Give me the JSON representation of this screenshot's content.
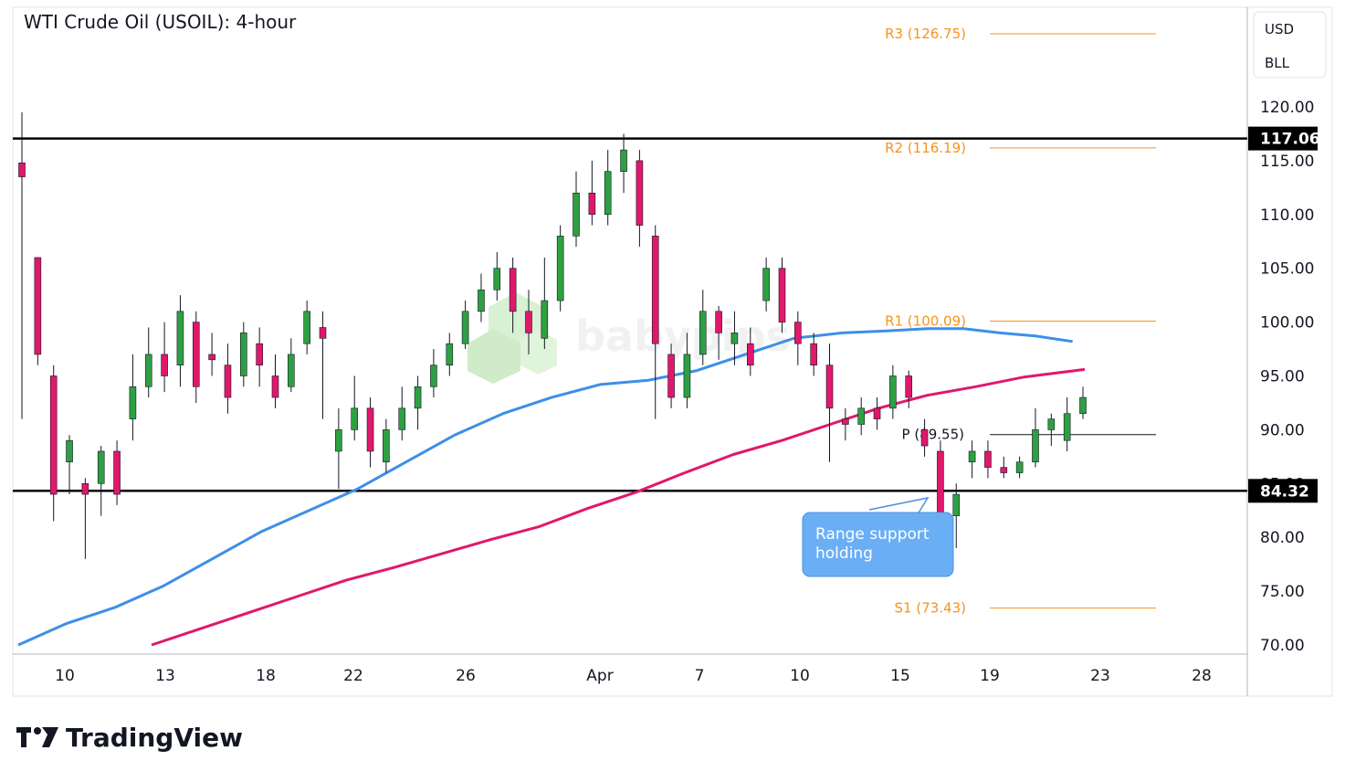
{
  "chart_data": {
    "type": "candlestick",
    "title": "WTI Crude Oil (USOIL): 4-hour",
    "currency_labels": [
      "USD",
      "BLL"
    ],
    "y_ticks": [
      "120.00",
      "115.00",
      "110.00",
      "105.00",
      "100.00",
      "95.00",
      "90.00",
      "85.00",
      "80.00",
      "75.00",
      "70.00"
    ],
    "ylim": [
      70,
      125
    ],
    "x_ticks": [
      "10",
      "13",
      "18",
      "22",
      "26",
      "Apr",
      "7",
      "10",
      "15",
      "19",
      "23",
      "28"
    ],
    "grid": false,
    "horizontal_levels": [
      {
        "label": "117.06",
        "value": 117.06,
        "color": "#000000"
      },
      {
        "label": "84.32",
        "value": 84.32,
        "color": "#000000"
      }
    ],
    "pivot_levels": [
      {
        "label": "R3 (126.75)",
        "value": 126.75
      },
      {
        "label": "R2 (116.19)",
        "value": 116.19
      },
      {
        "label": "R1 (100.09)",
        "value": 100.09
      },
      {
        "label": "P (89.55)",
        "value": 89.55
      },
      {
        "label": "S1 (73.43)",
        "value": 73.43
      }
    ],
    "moving_averages": [
      {
        "color": "#3d8fe8",
        "points": [
          [
            0,
            70.0
          ],
          [
            8,
            72.0
          ],
          [
            16,
            73.5
          ],
          [
            24,
            75.5
          ],
          [
            32,
            78.0
          ],
          [
            40,
            80.5
          ],
          [
            48,
            82.5
          ],
          [
            56,
            84.5
          ],
          [
            64,
            87.0
          ],
          [
            72,
            89.5
          ],
          [
            80,
            91.5
          ],
          [
            88,
            93.0
          ],
          [
            96,
            94.2
          ],
          [
            104,
            94.6
          ],
          [
            112,
            95.5
          ],
          [
            120,
            97.0
          ],
          [
            128,
            98.5
          ],
          [
            136,
            99.0
          ],
          [
            144,
            99.2
          ],
          [
            150,
            99.4
          ],
          [
            156,
            99.4
          ],
          [
            162,
            99.0
          ],
          [
            168,
            98.7
          ],
          [
            174,
            98.2
          ]
        ]
      },
      {
        "color": "#e0186c",
        "points": [
          [
            22,
            70.0
          ],
          [
            30,
            71.5
          ],
          [
            38,
            73.0
          ],
          [
            46,
            74.5
          ],
          [
            54,
            76.0
          ],
          [
            62,
            77.2
          ],
          [
            70,
            78.5
          ],
          [
            78,
            79.8
          ],
          [
            86,
            81.0
          ],
          [
            94,
            82.7
          ],
          [
            102,
            84.2
          ],
          [
            110,
            86.0
          ],
          [
            118,
            87.7
          ],
          [
            126,
            89.0
          ],
          [
            134,
            90.5
          ],
          [
            142,
            92.0
          ],
          [
            150,
            93.2
          ],
          [
            158,
            94.0
          ],
          [
            166,
            94.9
          ],
          [
            176,
            95.6
          ]
        ]
      }
    ],
    "candles": [
      [
        114.8,
        113.5,
        119.5,
        91.0
      ],
      [
        106.0,
        97.0,
        106.0,
        96.0
      ],
      [
        95.0,
        84.0,
        96.0,
        81.5
      ],
      [
        87.0,
        89.0,
        89.5,
        84.0
      ],
      [
        85.0,
        84.0,
        85.5,
        78.0
      ],
      [
        85.0,
        88.0,
        88.5,
        82.0
      ],
      [
        88.0,
        84.0,
        89.0,
        83.0
      ],
      [
        91.0,
        94.0,
        97.0,
        89.0
      ],
      [
        94.0,
        97.0,
        99.5,
        93.0
      ],
      [
        97.0,
        95.0,
        100.0,
        93.5
      ],
      [
        96.0,
        101.0,
        102.5,
        94.0
      ],
      [
        100.0,
        94.0,
        101.0,
        92.5
      ],
      [
        97.0,
        96.5,
        99.0,
        95.0
      ],
      [
        96.0,
        93.0,
        98.0,
        91.5
      ],
      [
        95.0,
        99.0,
        100.0,
        94.0
      ],
      [
        98.0,
        96.0,
        99.5,
        94.0
      ],
      [
        95.0,
        93.0,
        97.0,
        92.0
      ],
      [
        94.0,
        97.0,
        98.5,
        93.5
      ],
      [
        98.0,
        101.0,
        102.0,
        97.0
      ],
      [
        99.5,
        98.5,
        101.0,
        91.0
      ],
      [
        88.0,
        90.0,
        92.0,
        84.5
      ],
      [
        90.0,
        92.0,
        95.0,
        89.0
      ],
      [
        92.0,
        88.0,
        93.0,
        86.5
      ],
      [
        87.0,
        90.0,
        91.0,
        86.0
      ],
      [
        90.0,
        92.0,
        94.0,
        89.0
      ],
      [
        92.0,
        94.0,
        95.0,
        90.0
      ],
      [
        94.0,
        96.0,
        97.5,
        93.0
      ],
      [
        96.0,
        98.0,
        99.0,
        95.0
      ],
      [
        98.0,
        101.0,
        102.0,
        97.5
      ],
      [
        101.0,
        103.0,
        104.5,
        100.0
      ],
      [
        103.0,
        105.0,
        106.5,
        102.0
      ],
      [
        105.0,
        101.0,
        106.0,
        99.0
      ],
      [
        101.0,
        99.0,
        103.0,
        97.0
      ],
      [
        98.5,
        102.0,
        106.0,
        97.5
      ],
      [
        102.0,
        108.0,
        109.0,
        101.0
      ],
      [
        108.0,
        112.0,
        114.0,
        107.0
      ],
      [
        112.0,
        110.0,
        115.0,
        109.0
      ],
      [
        110.0,
        114.0,
        116.0,
        109.0
      ],
      [
        114.0,
        116.0,
        117.5,
        112.0
      ],
      [
        115.0,
        109.0,
        116.0,
        107.0
      ],
      [
        108.0,
        98.0,
        109.0,
        91.0
      ],
      [
        97.0,
        93.0,
        98.0,
        92.0
      ],
      [
        93.0,
        97.0,
        99.0,
        92.0
      ],
      [
        97.0,
        101.0,
        103.0,
        96.0
      ],
      [
        101.0,
        99.0,
        101.5,
        96.5
      ],
      [
        98.0,
        99.0,
        101.0,
        96.0
      ],
      [
        98.0,
        96.0,
        99.5,
        95.0
      ],
      [
        102.0,
        105.0,
        106.0,
        101.0
      ],
      [
        105.0,
        100.0,
        106.0,
        99.0
      ],
      [
        100.0,
        98.0,
        101.0,
        96.0
      ],
      [
        98.0,
        96.0,
        99.0,
        95.0
      ],
      [
        96.0,
        92.0,
        98.0,
        87.0
      ],
      [
        91.0,
        90.5,
        92.0,
        89.0
      ],
      [
        90.5,
        92.0,
        93.0,
        89.5
      ],
      [
        92.0,
        91.0,
        93.0,
        90.0
      ],
      [
        92.0,
        95.0,
        96.0,
        91.0
      ],
      [
        95.0,
        93.0,
        95.5,
        92.0
      ],
      [
        90.0,
        88.5,
        91.0,
        87.5
      ],
      [
        88.0,
        82.0,
        89.0,
        80.5
      ],
      [
        82.0,
        84.0,
        85.0,
        79.0
      ],
      [
        87.0,
        88.0,
        89.0,
        85.5
      ],
      [
        88.0,
        86.5,
        89.0,
        85.5
      ],
      [
        86.5,
        86.0,
        87.5,
        85.5
      ],
      [
        86.0,
        87.0,
        87.5,
        85.5
      ],
      [
        87.0,
        90.0,
        92.0,
        86.5
      ],
      [
        90.0,
        91.0,
        91.5,
        88.5
      ],
      [
        89.0,
        91.5,
        93.0,
        88.0
      ],
      [
        91.5,
        93.0,
        94.0,
        91.0
      ]
    ],
    "annotations": [
      "Range support holding"
    ],
    "watermark": "babypips",
    "branding": "TradingView"
  }
}
